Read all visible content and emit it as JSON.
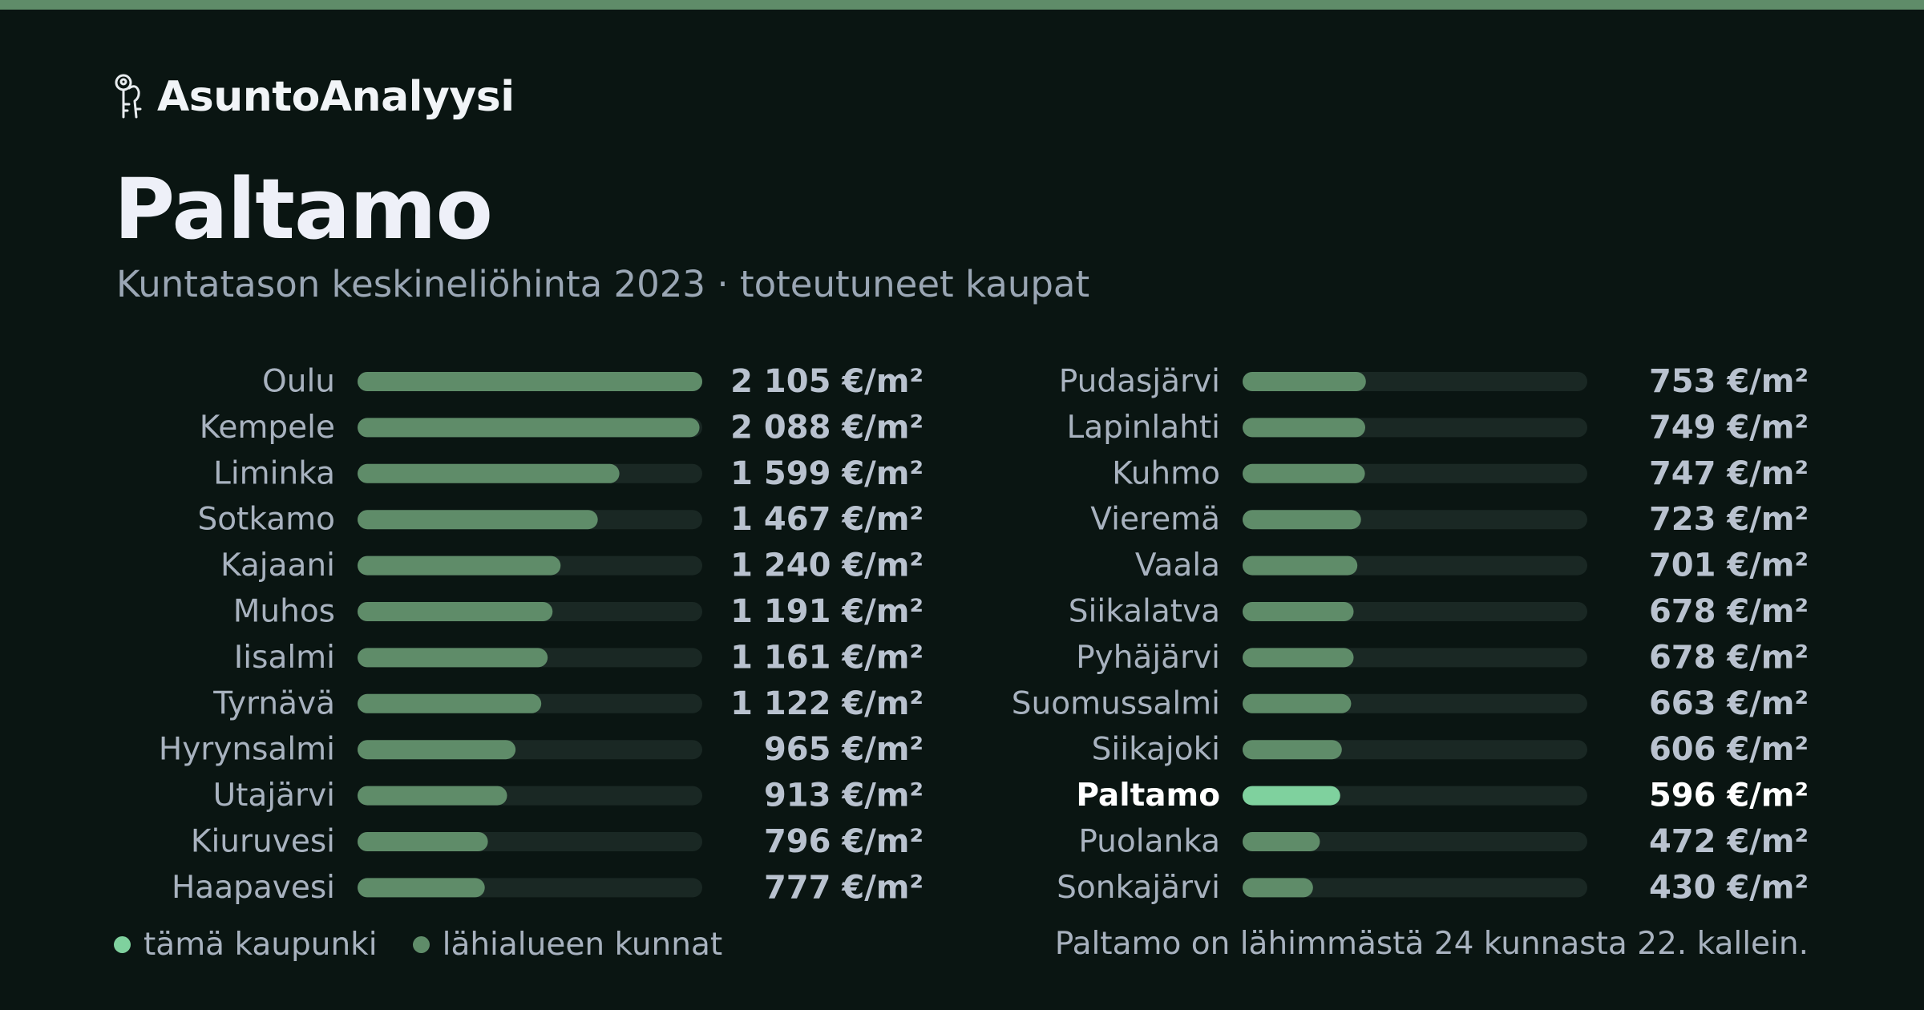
{
  "brand": {
    "name": "AsuntoAnalyysi",
    "icon": "keys-icon"
  },
  "colors": {
    "background": "#0a1512",
    "accent_bar": "#5f8c69",
    "bar_default": "#5f8c69",
    "bar_highlight": "#7fd19e",
    "bar_track": "#1a2824",
    "label_default": "#a8b2bf",
    "value_default": "#b9c2cf",
    "highlight_text": "#ffffff"
  },
  "header": {
    "title": "Paltamo",
    "subtitle": "Kuntatason keskineliöhinta 2023 · toteutuneet kaupat"
  },
  "chart_data": {
    "type": "bar",
    "orientation": "horizontal",
    "unit": "€/m²",
    "xlim": [
      0,
      2105
    ],
    "grid": false,
    "highlight": "Paltamo",
    "categories": [
      "Oulu",
      "Kempele",
      "Liminka",
      "Sotkamo",
      "Kajaani",
      "Muhos",
      "Iisalmi",
      "Tyrnävä",
      "Hyrynsalmi",
      "Utajärvi",
      "Kiuruvesi",
      "Haapavesi",
      "Pudasjärvi",
      "Lapinlahti",
      "Kuhmo",
      "Vieremä",
      "Vaala",
      "Siikalatva",
      "Pyhäjärvi",
      "Suomussalmi",
      "Siikajoki",
      "Paltamo",
      "Puolanka",
      "Sonkajärvi"
    ],
    "values": [
      2105,
      2088,
      1599,
      1467,
      1240,
      1191,
      1161,
      1122,
      965,
      913,
      796,
      777,
      753,
      749,
      747,
      723,
      701,
      678,
      678,
      663,
      606,
      596,
      472,
      430
    ],
    "value_labels": [
      "2 105 €/m²",
      "2 088 €/m²",
      "1 599 €/m²",
      "1 467 €/m²",
      "1 240 €/m²",
      "1 191 €/m²",
      "1 161 €/m²",
      "1 122 €/m²",
      "965 €/m²",
      "913 €/m²",
      "796 €/m²",
      "777 €/m²",
      "753 €/m²",
      "749 €/m²",
      "747 €/m²",
      "723 €/m²",
      "701 €/m²",
      "678 €/m²",
      "678 €/m²",
      "663 €/m²",
      "606 €/m²",
      "596 €/m²",
      "472 €/m²",
      "430 €/m²"
    ]
  },
  "legend": {
    "this_city": "tämä kaupunki",
    "nearby": "lähialueen kunnat"
  },
  "footer": {
    "summary": "Paltamo on lähimmästä 24 kunnasta 22. kallein."
  }
}
